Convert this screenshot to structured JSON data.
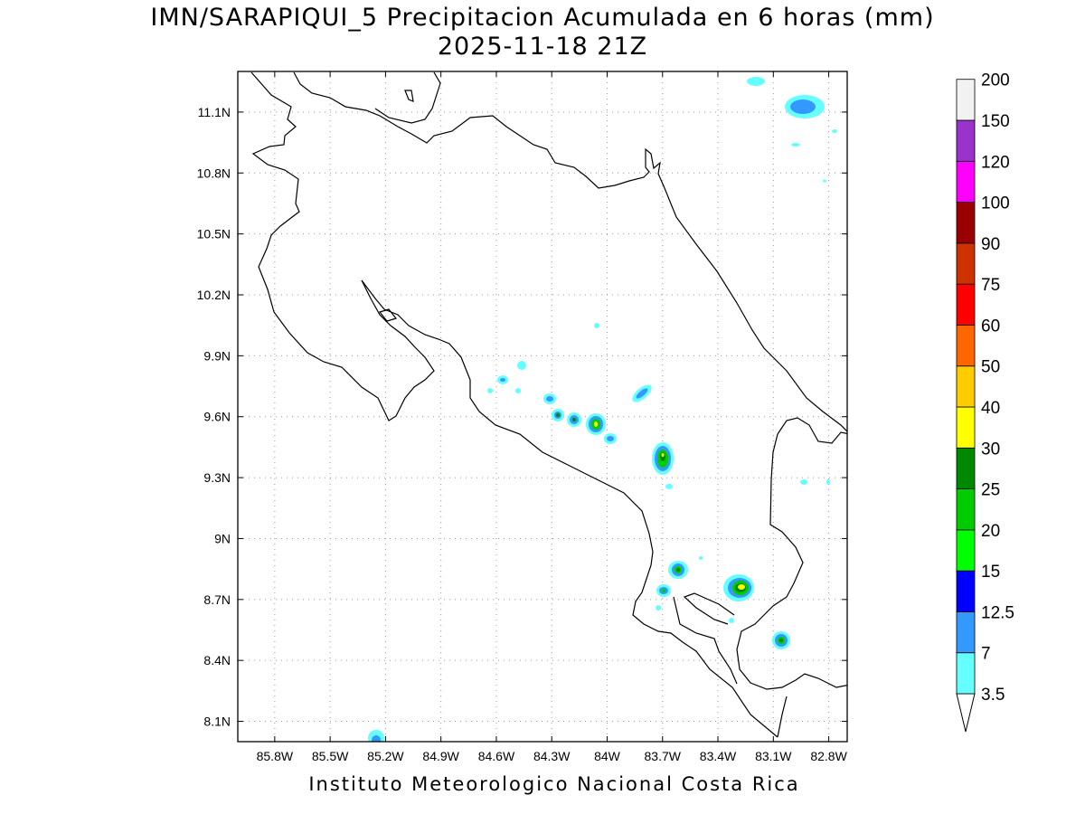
{
  "title": {
    "line1": "IMN/SARAPIQUI_5 Precipitacion Acumulada en 6 horas (mm)",
    "line2": "2025-11-18 21Z"
  },
  "footer": "Instituto Meteorologico Nacional Costa Rica",
  "map": {
    "lon_range": [
      -86.0,
      -82.7
    ],
    "lat_range": [
      8.0,
      11.3
    ],
    "grid": "dotted",
    "x_ticks": [
      "85.8W",
      "85.5W",
      "85.2W",
      "84.9W",
      "84.6W",
      "84.3W",
      "84W",
      "83.7W",
      "83.4W",
      "83.1W",
      "82.8W"
    ],
    "y_ticks": [
      "11.1N",
      "10.8N",
      "10.5N",
      "10.2N",
      "9.9N",
      "9.6N",
      "9.3N",
      "9N",
      "8.7N",
      "8.4N",
      "8.1N"
    ]
  },
  "colorbar": {
    "levels": [
      "3.5",
      "7",
      "12.5",
      "15",
      "20",
      "25",
      "30",
      "40",
      "50",
      "60",
      "75",
      "90",
      "100",
      "120",
      "150",
      "200"
    ],
    "colors": [
      "#66ffff",
      "#3399ff",
      "#0000ff",
      "#00ff00",
      "#00cc00",
      "#008800",
      "#ffff00",
      "#ffcc00",
      "#ff6600",
      "#ff0000",
      "#cc3300",
      "#990000",
      "#ff00ff",
      "#9933cc",
      "#f2f2f2",
      "#aaaaaa"
    ],
    "extend": "both"
  }
}
